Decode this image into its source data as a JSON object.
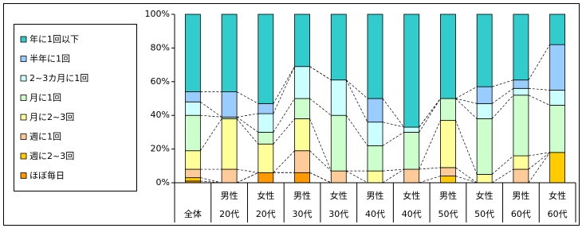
{
  "chart_data": {
    "type": "stacked_bar_100",
    "categories": [
      "全体",
      "20代",
      "20代",
      "30代",
      "30代",
      "40代",
      "40代",
      "50代",
      "50代",
      "60代",
      "60代"
    ],
    "category_groups": [
      null,
      "男性",
      "女性",
      "男性",
      "女性",
      "男性",
      "女性",
      "男性",
      "女性",
      "男性",
      "女性"
    ],
    "series": [
      {
        "name": "ほぼ毎日",
        "color": "#ff9900",
        "values": [
          1,
          0,
          6,
          6,
          0,
          0,
          0,
          0,
          0,
          0,
          0
        ]
      },
      {
        "name": "週に2~3回",
        "color": "#ffcc00",
        "values": [
          2,
          0,
          0,
          0,
          0,
          0,
          0,
          4,
          0,
          0,
          18
        ]
      },
      {
        "name": "週に1回",
        "color": "#ffcc99",
        "values": [
          5,
          8,
          0,
          13,
          7,
          0,
          8,
          5,
          0,
          8,
          0
        ]
      },
      {
        "name": "月に2~3回",
        "color": "#ffff99",
        "values": [
          11,
          30,
          17,
          19,
          0,
          7,
          0,
          28,
          5,
          8,
          0
        ]
      },
      {
        "name": "月に1回",
        "color": "#ccffcc",
        "values": [
          21,
          1,
          7,
          12,
          33,
          15,
          22,
          13,
          33,
          36,
          28
        ]
      },
      {
        "name": "2~3カ月に1回",
        "color": "#ccffff",
        "values": [
          8,
          0,
          11,
          19,
          21,
          14,
          3,
          0,
          9,
          4,
          9
        ]
      },
      {
        "name": "半年に1回",
        "color": "#99ccff",
        "values": [
          6,
          15,
          6,
          0,
          0,
          14,
          0,
          0,
          10,
          5,
          27
        ]
      },
      {
        "name": "年に1回以下",
        "color": "#33cccc",
        "values": [
          46,
          46,
          53,
          31,
          39,
          50,
          67,
          50,
          43,
          39,
          18
        ]
      }
    ],
    "ylim": [
      0,
      100
    ],
    "yticks": [
      {
        "value": 0,
        "label": "0%"
      },
      {
        "value": 20,
        "label": "20%"
      },
      {
        "value": 40,
        "label": "40%"
      },
      {
        "value": 60,
        "label": "60%"
      },
      {
        "value": 80,
        "label": "80%"
      },
      {
        "value": 100,
        "label": "100%"
      }
    ]
  }
}
